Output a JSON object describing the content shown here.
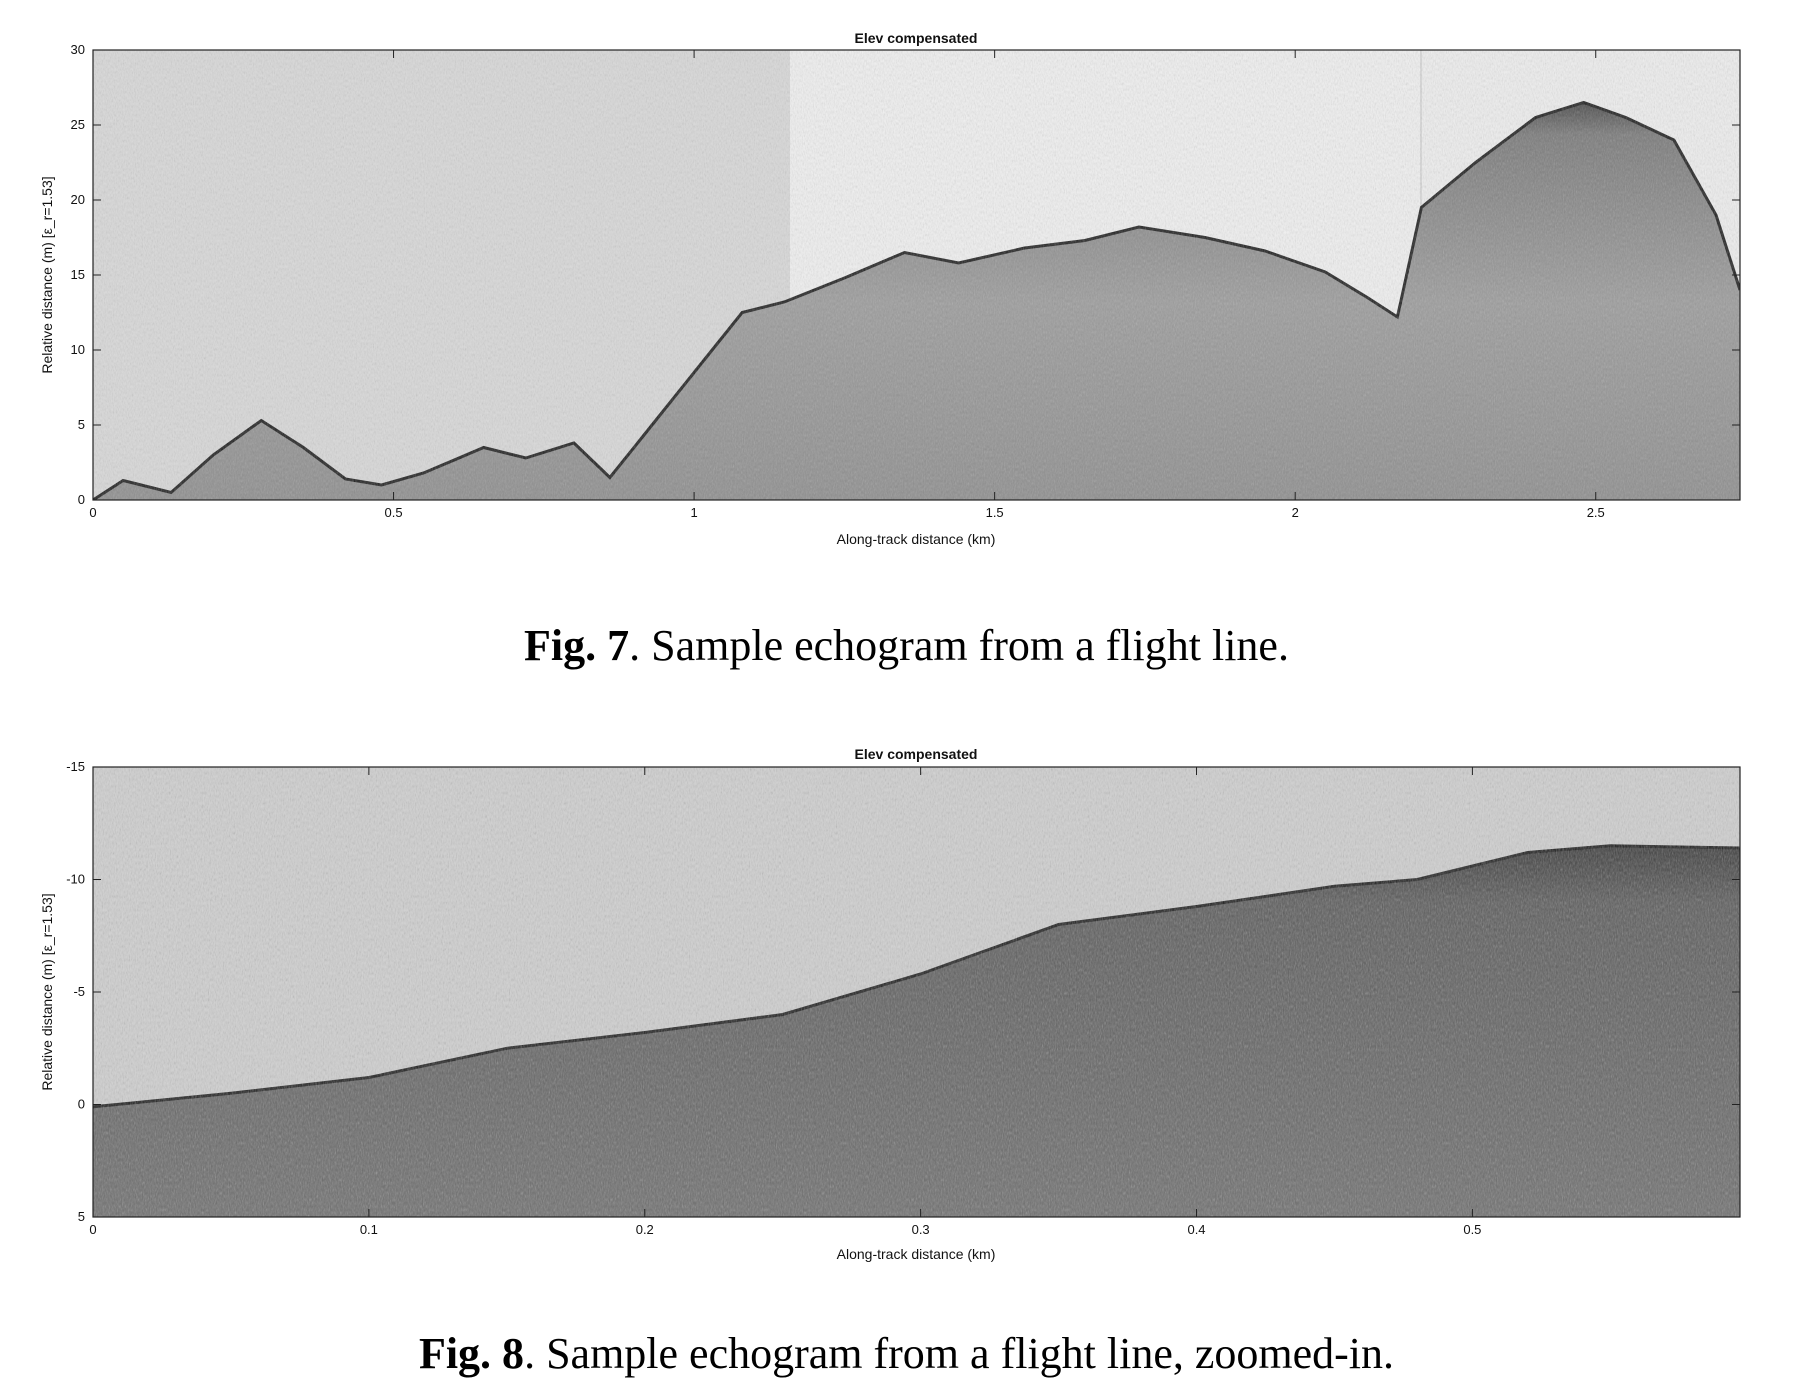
{
  "figures": [
    {
      "caption_label": "Fig. 7",
      "caption_text": ". Sample echogram from a flight line."
    },
    {
      "caption_label": "Fig. 8",
      "caption_text": ". Sample echogram from a flight line, zoomed-in."
    }
  ],
  "chart_data": [
    {
      "type": "heatmap",
      "title": "Elev compensated",
      "xlabel": "Along-track distance (km)",
      "ylabel": "Relative distance (m) [ε_r=1.53]",
      "xlim": [
        0,
        2.74
      ],
      "ylim": [
        30,
        0
      ],
      "y_reversed": true,
      "x_ticks": [
        0,
        0.5,
        1,
        1.5,
        2,
        2.5
      ],
      "x_tick_labels": [
        "0",
        "0.5",
        "1",
        "1.5",
        "2",
        "2.5"
      ],
      "y_ticks": [
        0,
        5,
        10,
        15,
        20,
        25,
        30
      ],
      "y_tick_labels": [
        "0",
        "5",
        "10",
        "15",
        "20",
        "25",
        "30"
      ],
      "colormap": "grayscale",
      "surface_trace": {
        "x": [
          0,
          0.05,
          0.13,
          0.2,
          0.28,
          0.35,
          0.42,
          0.48,
          0.55,
          0.65,
          0.72,
          0.8,
          0.86,
          0.92,
          1.0,
          1.08,
          1.15,
          1.25,
          1.35,
          1.44,
          1.55,
          1.65,
          1.74,
          1.85,
          1.95,
          2.05,
          2.12,
          2.17,
          2.21,
          2.3,
          2.4,
          2.48,
          2.55,
          2.63,
          2.7,
          2.74
        ],
        "y": [
          0,
          1.3,
          0.5,
          3.0,
          5.3,
          3.5,
          1.4,
          1.0,
          1.8,
          3.5,
          2.8,
          3.8,
          1.5,
          4.5,
          8.5,
          12.5,
          13.2,
          14.8,
          16.5,
          15.8,
          16.8,
          17.3,
          18.2,
          17.5,
          16.6,
          15.2,
          13.5,
          12.2,
          19.5,
          22.5,
          25.5,
          26.5,
          25.5,
          24.0,
          19.0,
          14.0
        ]
      }
    },
    {
      "type": "heatmap",
      "title": "Elev compensated",
      "xlabel": "Along-track distance (km)",
      "ylabel": "Relative distance (m) [ε_r=1.53]",
      "xlim": [
        0,
        0.597
      ],
      "ylim": [
        -15,
        5
      ],
      "y_reversed": true,
      "x_ticks": [
        0,
        0.1,
        0.2,
        0.3,
        0.4,
        0.5
      ],
      "x_tick_labels": [
        "0",
        "0.1",
        "0.2",
        "0.3",
        "0.4",
        "0.5"
      ],
      "y_ticks": [
        -15,
        -10,
        -5,
        0,
        5
      ],
      "y_tick_labels": [
        "-15",
        "-10",
        "-5",
        "0",
        "5"
      ],
      "colormap": "grayscale",
      "surface_trace": {
        "x": [
          0,
          0.05,
          0.1,
          0.15,
          0.2,
          0.25,
          0.3,
          0.35,
          0.4,
          0.45,
          0.48,
          0.52,
          0.55,
          0.597
        ],
        "y": [
          0.1,
          -0.5,
          -1.2,
          -2.5,
          -3.2,
          -4.0,
          -5.8,
          -8.0,
          -8.8,
          -9.7,
          -10.0,
          -11.2,
          -11.5,
          -11.4
        ]
      }
    }
  ]
}
